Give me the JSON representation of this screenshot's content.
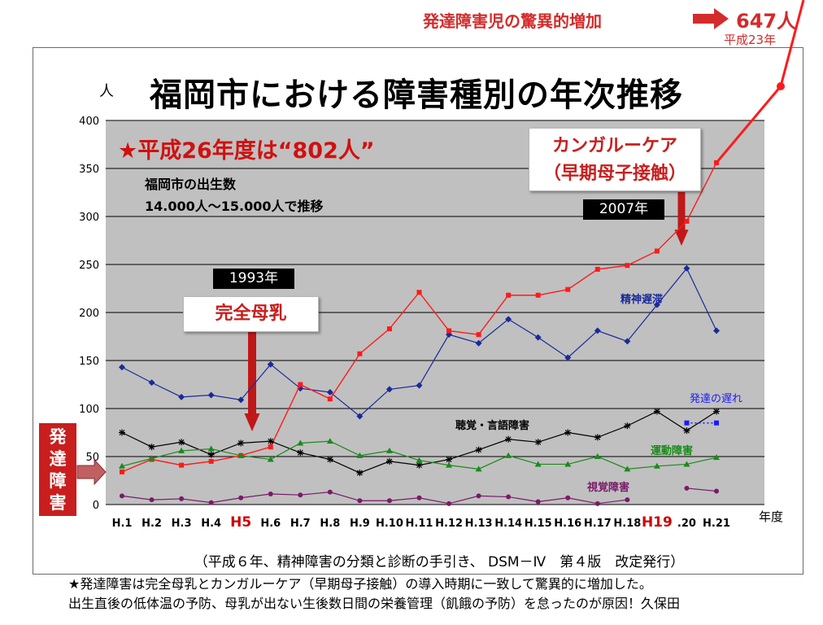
{
  "header": {
    "note": "発達障害児の驚異的増加",
    "value": "647人",
    "year": "平成23年"
  },
  "chart_data": {
    "type": "line",
    "title": "福岡市における障害種別の年次推移",
    "y_unit": "人",
    "x_unit": "年度",
    "ylim": [
      0,
      400
    ],
    "y_ticks": [
      "400",
      "350",
      "300",
      "250",
      "200",
      "150",
      "100",
      "50",
      "0"
    ],
    "grid": true,
    "categories": [
      "H.1",
      "H.2",
      "H.3",
      "H.4",
      "H5",
      "H.6",
      "H.7",
      "H.8",
      "H.9",
      "H.10",
      "H.11",
      "H.12",
      "H.13",
      "H.14",
      "H.15",
      "H.16",
      "H.17",
      "H.18",
      "H19",
      ".20",
      "H.21"
    ],
    "highlight_categories": [
      "H5",
      "H19"
    ],
    "series": [
      {
        "name": "精神遅滞",
        "color": "#1a2a9a",
        "marker": "diamond",
        "values": [
          143,
          127,
          112,
          114,
          109,
          146,
          121,
          117,
          92,
          120,
          124,
          177,
          168,
          193,
          174,
          153,
          181,
          170,
          208,
          246,
          181
        ]
      },
      {
        "name": "",
        "color": "#ff1a1a",
        "marker": "square",
        "values": [
          34,
          47,
          41,
          45,
          51,
          60,
          125,
          110,
          157,
          183,
          221,
          181,
          177,
          218,
          218,
          224,
          245,
          249,
          264,
          295,
          356
        ]
      },
      {
        "name": "聴覚・言語障害",
        "color": "#000000",
        "marker": "star",
        "values": [
          75,
          60,
          65,
          52,
          64,
          66,
          54,
          47,
          33,
          45,
          41,
          47,
          57,
          68,
          65,
          75,
          70,
          82,
          97,
          77,
          97
        ]
      },
      {
        "name": "運動障害",
        "color": "#1a8a1a",
        "marker": "triangle",
        "values": [
          40,
          48,
          56,
          58,
          51,
          47,
          64,
          66,
          51,
          56,
          46,
          41,
          37,
          51,
          42,
          42,
          50,
          37,
          40,
          42,
          49
        ]
      },
      {
        "name": "視覚障害",
        "color": "#7a1a6a",
        "marker": "circle",
        "values": [
          9,
          5,
          6,
          2,
          7,
          11,
          10,
          13,
          4,
          4,
          7,
          1,
          9,
          8,
          3,
          7,
          1,
          5,
          null,
          17,
          14
        ]
      },
      {
        "name": "発達の遅れ",
        "color": "#1a1aff",
        "marker": "square",
        "values": [
          null,
          null,
          null,
          null,
          null,
          null,
          null,
          null,
          null,
          null,
          null,
          null,
          null,
          null,
          null,
          null,
          null,
          null,
          null,
          85,
          85
        ]
      }
    ],
    "annotations": {
      "big_note": "★平成26年度は“802人”",
      "birth_title": "福岡市の出生数",
      "birth_range": "14.000人～15.000人で推移",
      "kangaroo_line1": "カンガルーケア",
      "kangaroo_line2": "（早期母子接触）",
      "year_2007": "2007年",
      "year_1993": "1993年",
      "breastfeeding": "完全母乳",
      "side_tag": "発達障害",
      "dsm_note": "（平成６年、精神障害の分類と診断の手引き、 DSM－Ⅳ　第４版　改定発行）"
    }
  },
  "footnote": {
    "line1": "★発達障害は完全母乳とカンガルーケア（早期母子接触）の導入時期に一致して驚異的に増加した。",
    "line2": "出生直後の低体温の予防、母乳が出ない生後数日間の栄養管理（飢餓の予防）を怠ったのが原因！久保田"
  }
}
